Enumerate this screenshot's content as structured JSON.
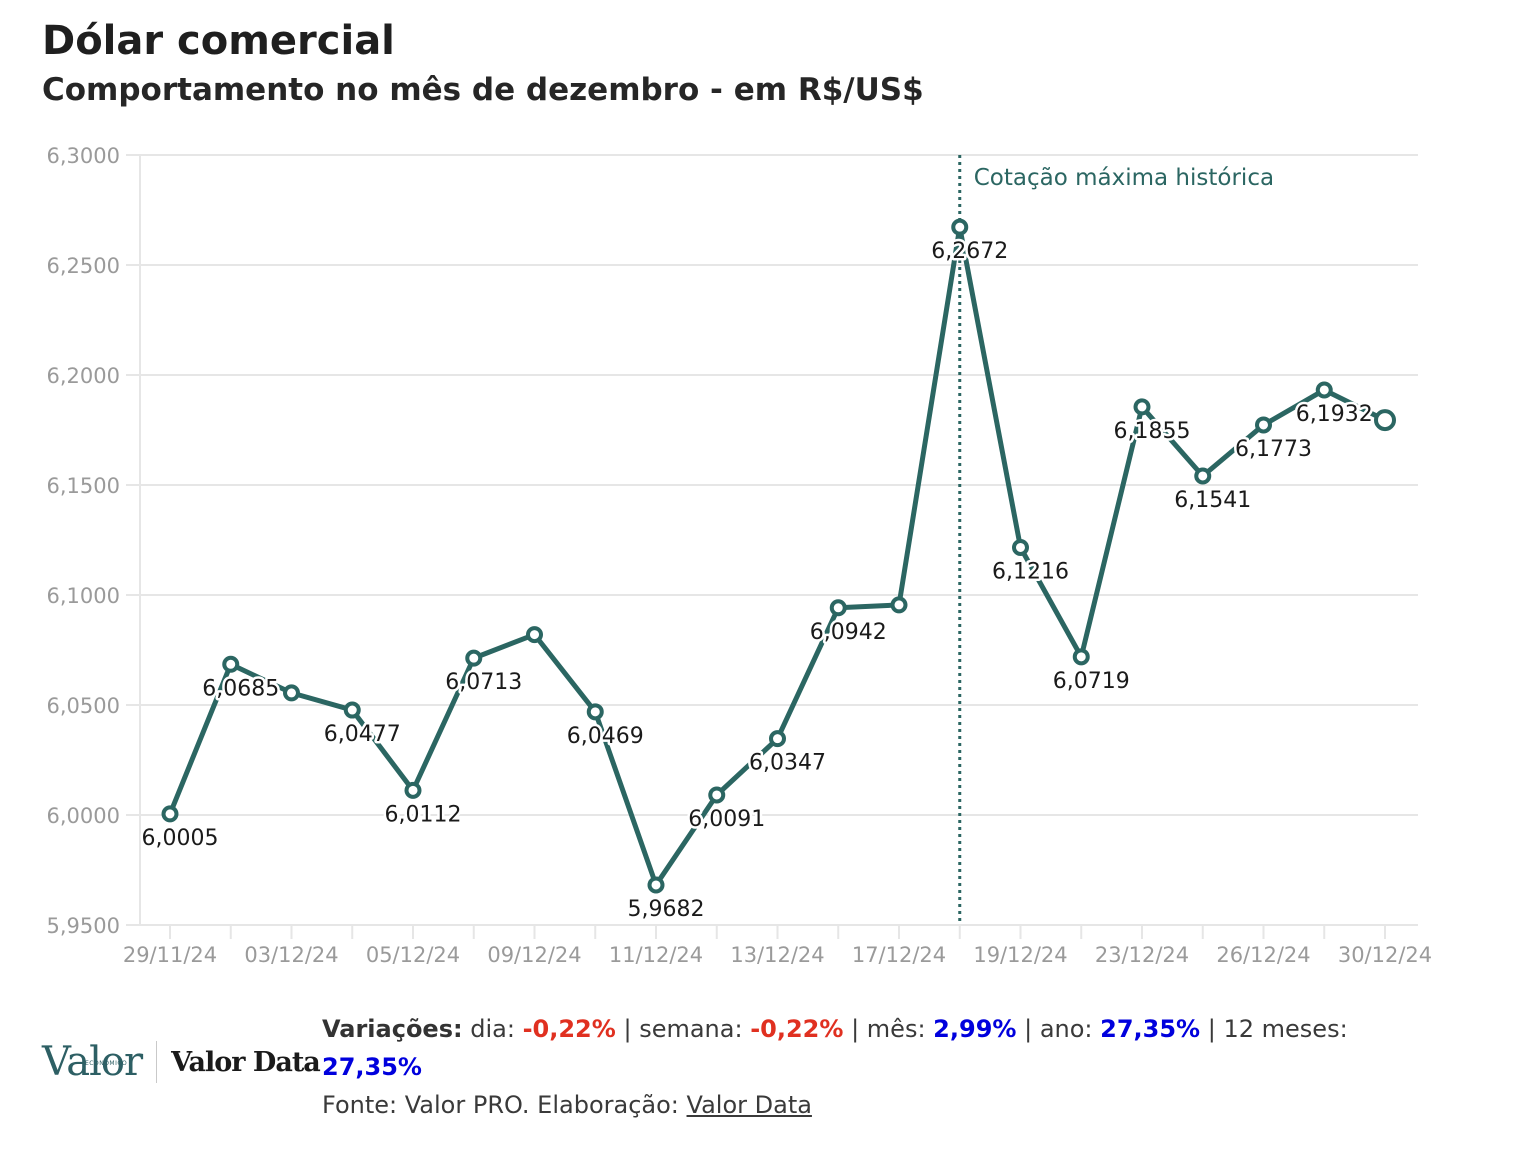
{
  "title": "Dólar comercial",
  "subtitle": "Comportamento no mês de dezembro - em R$/US$",
  "chart_data": {
    "type": "line",
    "ylim": [
      5.95,
      6.3
    ],
    "yticks": [
      "6,3000",
      "6,2500",
      "6,2000",
      "6,1500",
      "6,1000",
      "6,0500",
      "6,0000",
      "5,9500"
    ],
    "ytick_values": [
      6.3,
      6.25,
      6.2,
      6.15,
      6.1,
      6.05,
      6.0,
      5.95
    ],
    "xlabels": [
      "29/11/24",
      "03/12/24",
      "05/12/24",
      "09/12/24",
      "11/12/24",
      "13/12/24",
      "17/12/24",
      "19/12/24",
      "23/12/24",
      "26/12/24",
      "30/12/24"
    ],
    "points": [
      {
        "date": "29/11/24",
        "value": 6.0005,
        "label": "6,0005"
      },
      {
        "date": "02/12/24",
        "value": 6.0685,
        "label": "6,0685"
      },
      {
        "date": "03/12/24",
        "value": 6.0555,
        "label": ""
      },
      {
        "date": "04/12/24",
        "value": 6.0477,
        "label": "6,0477"
      },
      {
        "date": "05/12/24",
        "value": 6.0112,
        "label": "6,0112"
      },
      {
        "date": "06/12/24",
        "value": 6.0713,
        "label": "6,0713"
      },
      {
        "date": "09/12/24",
        "value": 6.082,
        "label": ""
      },
      {
        "date": "10/12/24",
        "value": 6.0469,
        "label": "6,0469"
      },
      {
        "date": "11/12/24",
        "value": 5.9682,
        "label": "5,9682"
      },
      {
        "date": "12/12/24",
        "value": 6.0091,
        "label": "6,0091"
      },
      {
        "date": "13/12/24",
        "value": 6.0347,
        "label": "6,0347"
      },
      {
        "date": "16/12/24",
        "value": 6.0942,
        "label": "6,0942"
      },
      {
        "date": "17/12/24",
        "value": 6.0955,
        "label": ""
      },
      {
        "date": "18/12/24",
        "value": 6.2672,
        "label": "6,2672"
      },
      {
        "date": "19/12/24",
        "value": 6.1216,
        "label": "6,1216"
      },
      {
        "date": "20/12/24",
        "value": 6.0719,
        "label": "6,0719"
      },
      {
        "date": "23/12/24",
        "value": 6.1855,
        "label": "6,1855"
      },
      {
        "date": "24/12/24",
        "value": 6.1541,
        "label": "6,1541"
      },
      {
        "date": "26/12/24",
        "value": 6.1773,
        "label": "6,1773"
      },
      {
        "date": "27/12/24",
        "value": 6.1932,
        "label": "6,1932"
      },
      {
        "date": "30/12/24",
        "value": 6.1795,
        "label": ""
      }
    ],
    "annotation": {
      "text": "Cotação máxima histórica",
      "date": "18/12/24"
    },
    "line_color": "#2b6662",
    "grid": true,
    "legend": "none"
  },
  "footer": {
    "variacoes_label": "Variações:",
    "dia_label": "dia:",
    "dia_value": "-0,22%",
    "semana_label": "semana:",
    "semana_value": "-0,22%",
    "mes_label": "mês:",
    "mes_value": "2,99%",
    "ano_label": "ano:",
    "ano_value": "27,35%",
    "meses12_label": "12 meses:",
    "meses12_value": "27,35%",
    "sep": "|",
    "fonte": "Fonte: Valor PRO. Elaboração:",
    "fonte_link": "Valor Data"
  },
  "logos": {
    "valor": "Valor",
    "valor_small": "ECONÔMICO",
    "valor_data": "Valor Data"
  },
  "colors": {
    "negative": "#e03020",
    "positive": "#0000dd",
    "line": "#2b6662"
  }
}
